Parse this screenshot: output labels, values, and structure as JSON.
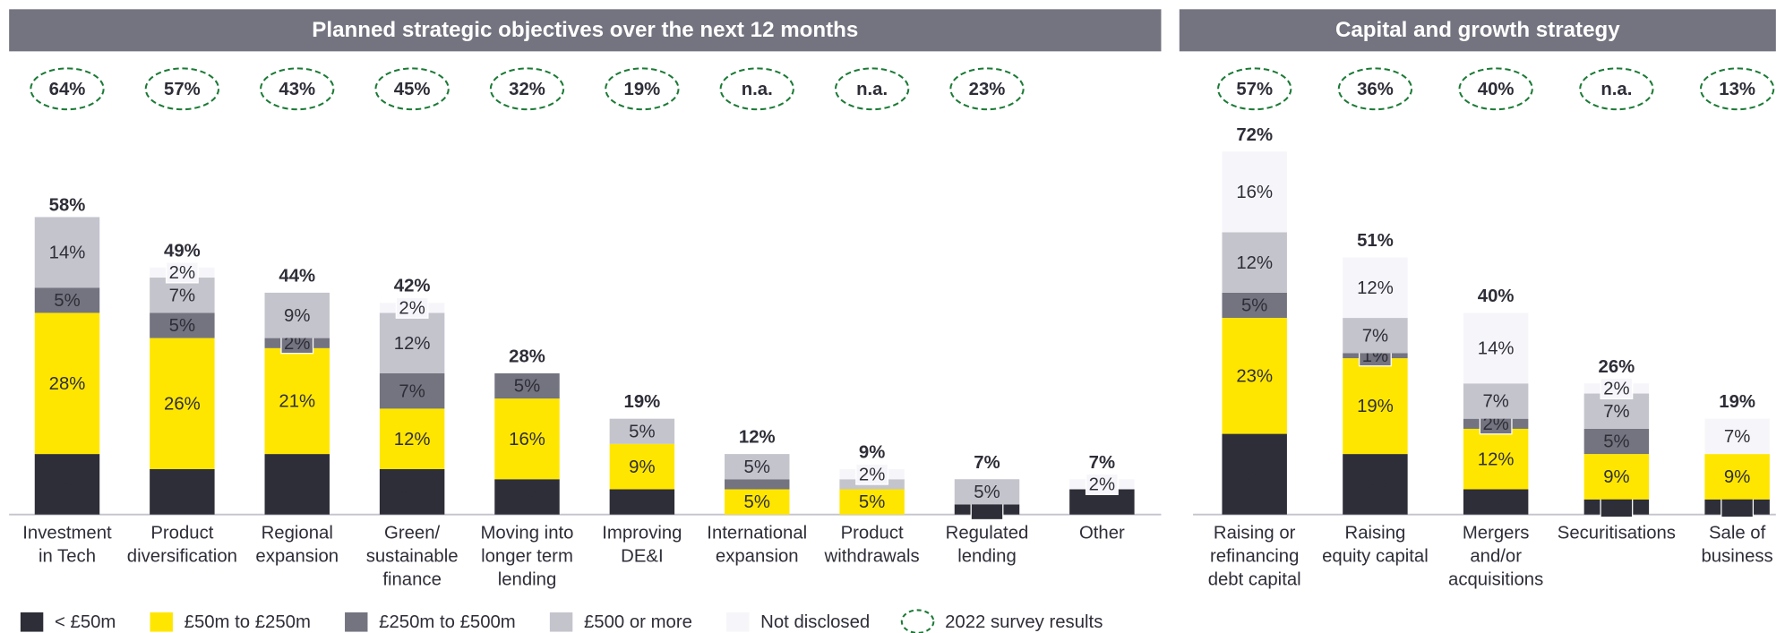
{
  "chart_data": [
    {
      "type": "bar",
      "stacked": true,
      "title": "Planned strategic objectives over the next 12 months",
      "categories": [
        [
          "Investment",
          "in Tech"
        ],
        [
          "Product",
          "diversification"
        ],
        [
          "Regional",
          "expansion"
        ],
        [
          "Green/",
          "sustainable",
          "finance"
        ],
        [
          "Moving into",
          "longer term",
          "lending"
        ],
        [
          "Improving",
          "DE&I"
        ],
        [
          "International",
          "expansion"
        ],
        [
          "Product",
          "withdrawals"
        ],
        [
          "Regulated",
          "lending"
        ],
        [
          "Other"
        ]
      ],
      "series": [
        {
          "name": "< £50m",
          "color": "#2e2e38",
          "values": [
            12,
            9,
            12,
            9,
            7,
            5,
            null,
            null,
            2,
            5
          ],
          "value_labels": [
            "12%",
            "9%",
            "12%",
            "9%",
            "7%",
            "5%",
            null,
            null,
            "2%",
            "5%"
          ]
        },
        {
          "name": "£50m to £250m",
          "color": "#ffe600",
          "values": [
            28,
            26,
            21,
            12,
            16,
            9,
            5,
            5,
            null,
            null
          ],
          "value_labels": [
            "28%",
            "26%",
            "21%",
            "12%",
            "16%",
            "9%",
            "5%",
            "5%",
            null,
            null
          ]
        },
        {
          "name": "£250m to £500m",
          "color": "#747480",
          "values": [
            5,
            5,
            2,
            7,
            5,
            null,
            2,
            null,
            null,
            null
          ],
          "value_labels": [
            "5%",
            "5%",
            "2%",
            "7%",
            "5%",
            null,
            null,
            null,
            null,
            null
          ]
        },
        {
          "name": "£500 or more",
          "color": "#c4c4cd",
          "values": [
            14,
            7,
            9,
            12,
            null,
            5,
            5,
            2,
            5,
            null
          ],
          "value_labels": [
            "14%",
            "7%",
            "9%",
            "12%",
            null,
            "5%",
            "5%",
            null,
            "5%",
            null
          ]
        },
        {
          "name": "Not disclosed",
          "color": "#f6f6fa",
          "values": [
            null,
            2,
            null,
            2,
            null,
            null,
            null,
            2,
            null,
            2
          ],
          "value_labels": [
            null,
            "2%",
            null,
            "2%",
            null,
            null,
            null,
            "2%",
            null,
            "2%"
          ]
        }
      ],
      "totals": [
        58,
        49,
        44,
        42,
        28,
        19,
        12,
        9,
        7,
        7
      ],
      "total_labels": [
        "58%",
        "49%",
        "44%",
        "42%",
        "28%",
        "19%",
        "12%",
        "9%",
        "7%",
        "7%"
      ],
      "survey": {
        "name": "2022 survey results",
        "color": "#1a7a35",
        "values": [
          64,
          57,
          43,
          45,
          32,
          19,
          null,
          null,
          23,
          null
        ],
        "value_labels": [
          "64%",
          "57%",
          "43%",
          "45%",
          "32%",
          "19%",
          "n.a.",
          "n.a.",
          "23%",
          null
        ]
      }
    },
    {
      "type": "bar",
      "stacked": true,
      "title": "Capital and growth strategy",
      "categories": [
        [
          "Raising or",
          "refinancing",
          "debt capital"
        ],
        [
          "Raising",
          "equity capital"
        ],
        [
          "Mergers",
          "and/or",
          "acquisitions"
        ],
        [
          "Securitisations"
        ],
        [
          "Sale of",
          "business"
        ]
      ],
      "series": [
        {
          "color": "#2e2e38",
          "values": [
            16,
            12,
            5,
            3,
            3
          ],
          "value_labels": [
            "16%",
            "12%",
            "5%",
            "3%",
            "3%"
          ]
        },
        {
          "color": "#ffe600",
          "values": [
            23,
            19,
            12,
            9,
            9
          ],
          "value_labels": [
            "23%",
            "19%",
            "12%",
            "9%",
            "9%"
          ]
        },
        {
          "color": "#747480",
          "values": [
            5,
            1,
            2,
            5,
            null
          ],
          "value_labels": [
            "5%",
            "1%",
            "2%",
            "5%",
            null
          ]
        },
        {
          "color": "#c4c4cd",
          "values": [
            12,
            7,
            7,
            7,
            null
          ],
          "value_labels": [
            "12%",
            "7%",
            "7%",
            "7%",
            null
          ]
        },
        {
          "color": "#f6f6fa",
          "values": [
            16,
            12,
            14,
            2,
            7
          ],
          "value_labels": [
            "16%",
            "12%",
            "14%",
            "2%",
            "7%"
          ]
        }
      ],
      "totals": [
        72,
        51,
        40,
        26,
        19
      ],
      "total_labels": [
        "72%",
        "51%",
        "40%",
        "26%",
        "19%"
      ],
      "survey": {
        "color": "#1a7a35",
        "values": [
          57,
          36,
          40,
          null,
          13
        ],
        "value_labels": [
          "57%",
          "36%",
          "40%",
          "n.a.",
          "13%"
        ]
      }
    }
  ]
}
